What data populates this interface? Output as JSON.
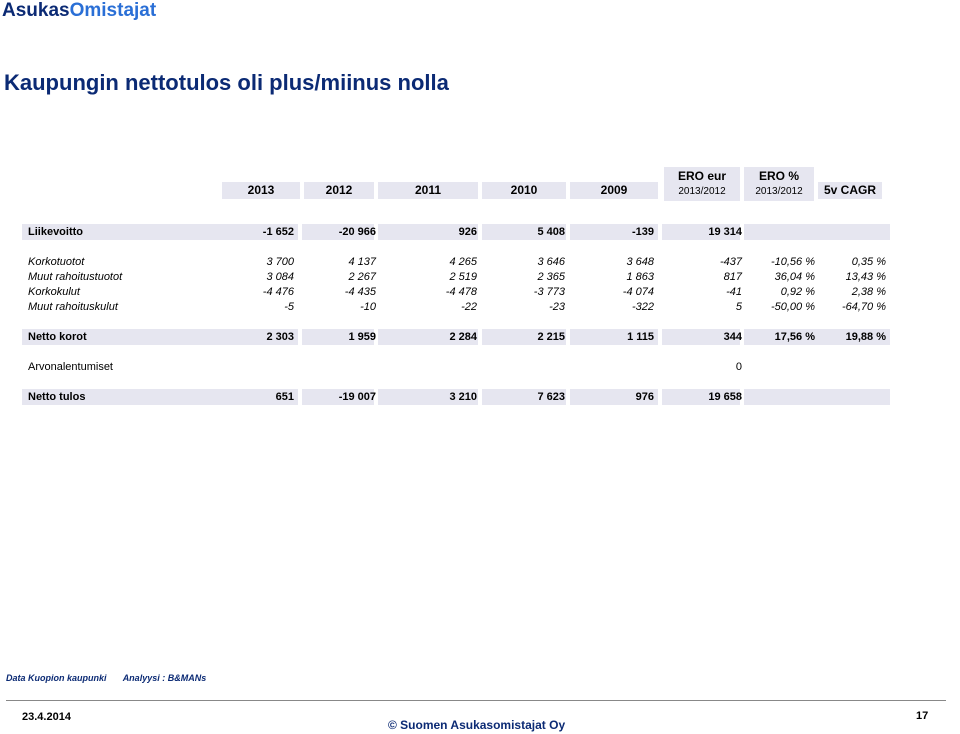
{
  "logo": {
    "part1": "Asukas",
    "part2": "Omistajat"
  },
  "title": "Kaupungin nettotulos oli plus/miinus nolla",
  "headers": {
    "years": [
      "2013",
      "2012",
      "2011",
      "2010",
      "2009"
    ],
    "ero_eur": {
      "line1": "ERO eur",
      "line2": "2013/2012"
    },
    "ero_pct": {
      "line1": "ERO %",
      "line2": "2013/2012"
    },
    "cagr": "5v CAGR"
  },
  "rows": [
    {
      "label": "Liikevoitto",
      "values": [
        "-1 652",
        "-20 966",
        "926",
        "5 408",
        "-139",
        "19 314",
        "",
        ""
      ]
    },
    {
      "label": "Korkotuotot",
      "values": [
        "3 700",
        "4 137",
        "4 265",
        "3 646",
        "3 648",
        "-437",
        "-10,56 %",
        "0,35 %"
      ]
    },
    {
      "label": "Muut rahoitustuotot",
      "values": [
        "3 084",
        "2 267",
        "2 519",
        "2 365",
        "1 863",
        "817",
        "36,04 %",
        "13,43 %"
      ]
    },
    {
      "label": "Korkokulut",
      "values": [
        "-4 476",
        "-4 435",
        "-4 478",
        "-3 773",
        "-4 074",
        "-41",
        "0,92 %",
        "2,38 %"
      ]
    },
    {
      "label": "Muut rahoituskulut",
      "values": [
        "-5",
        "-10",
        "-22",
        "-23",
        "-322",
        "5",
        "-50,00 %",
        "-64,70 %"
      ]
    },
    {
      "label": "Netto korot",
      "values": [
        "2 303",
        "1 959",
        "2 284",
        "2 215",
        "1 115",
        "344",
        "17,56 %",
        "19,88 %"
      ]
    },
    {
      "label": "Arvonalentumiset",
      "values": [
        "",
        "",
        "",
        "",
        "",
        "0",
        "",
        ""
      ]
    },
    {
      "label": "Netto tulos",
      "values": [
        "651",
        "-19 007",
        "3 210",
        "7 623",
        "976",
        "19 658",
        "",
        ""
      ]
    }
  ],
  "footer": {
    "source": "Data Kuopion kaupunki",
    "analysis": "Analyysi : B&MANs",
    "date": "23.4.2014",
    "copyright": "© Suomen Asukasomistajat Oy",
    "page": "17"
  }
}
